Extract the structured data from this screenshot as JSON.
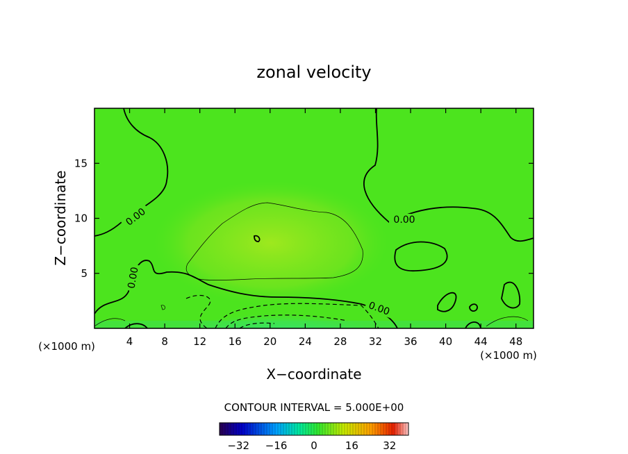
{
  "chart_data": {
    "type": "heatmap",
    "title": "zonal velocity",
    "xlabel": "X−coordinate",
    "ylabel": "Z−coordinate",
    "x_unit_left": "(×1000 m)",
    "x_unit_right": "(×1000 m)",
    "xlim": [
      0,
      50
    ],
    "ylim": [
      0,
      20
    ],
    "xticks": [
      4,
      8,
      12,
      16,
      20,
      24,
      28,
      32,
      36,
      40,
      44,
      48
    ],
    "yticks": [
      5,
      10,
      15
    ],
    "contour_label": "0.00",
    "contour_interval_text": "CONTOUR INTERVAL = 5.000E+00",
    "colorbar": {
      "range": [
        -40,
        40
      ],
      "ticks": [
        -32,
        -16,
        0,
        16,
        32
      ],
      "colormap": "rainbow",
      "colors": [
        "#2a0050",
        "#0000c8",
        "#00a0ff",
        "#00e8a0",
        "#30e830",
        "#c8e800",
        "#ffa000",
        "#e82000",
        "#ffc8c8"
      ]
    },
    "field_regions": [
      {
        "name": "background",
        "value": 2
      },
      {
        "name": "upper positive maximum",
        "x_center": 20,
        "z_center": 8,
        "value": 7
      },
      {
        "name": "lower negative jet",
        "x_center": 22,
        "z_center": 0.5,
        "value": -12
      }
    ]
  }
}
